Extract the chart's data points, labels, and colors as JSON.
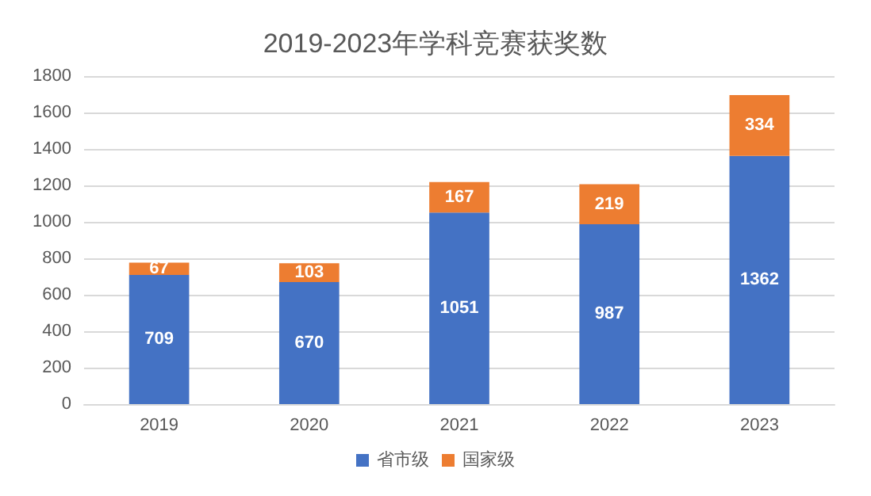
{
  "chart_data": {
    "type": "bar",
    "title": "2019-2023年学科竞赛获奖数",
    "categories": [
      "2019",
      "2020",
      "2021",
      "2022",
      "2023"
    ],
    "series": [
      {
        "name": "省市级",
        "color": "#4472c4",
        "values": [
          709,
          670,
          1051,
          987,
          1362
        ]
      },
      {
        "name": "国家级",
        "color": "#ed7d31",
        "values": [
          67,
          103,
          167,
          219,
          334
        ]
      }
    ],
    "stacked": true,
    "ylim": [
      0,
      1800
    ],
    "yticks": [
      0,
      200,
      400,
      600,
      800,
      1000,
      1200,
      1400,
      1600,
      1800
    ],
    "grid": "y",
    "legend": "bottom",
    "data_labels": true
  }
}
